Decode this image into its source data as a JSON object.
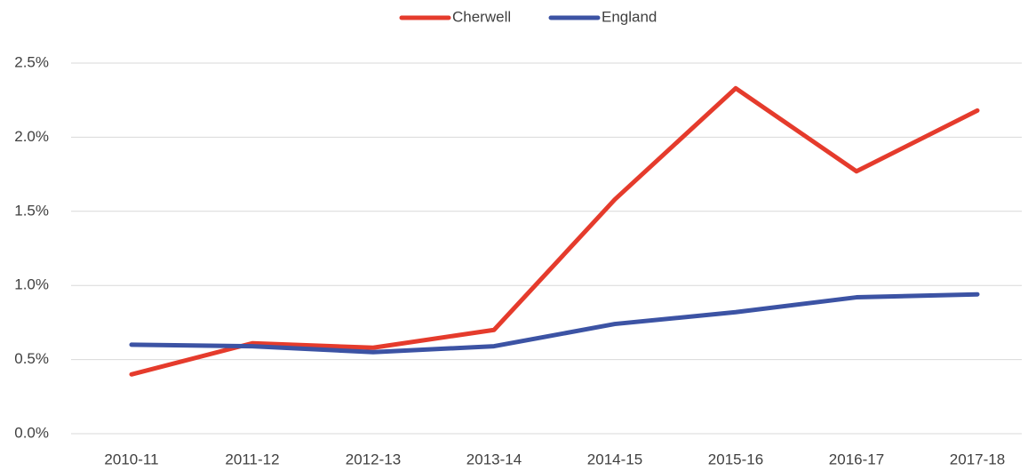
{
  "chart_data": {
    "type": "line",
    "categories": [
      "2010-11",
      "2011-12",
      "2012-13",
      "2013-14",
      "2014-15",
      "2015-16",
      "2016-17",
      "2017-18"
    ],
    "series": [
      {
        "name": "Cherwell",
        "color": "#e53b2c",
        "values": [
          0.4,
          0.61,
          0.58,
          0.7,
          1.58,
          2.33,
          1.77,
          2.18
        ]
      },
      {
        "name": "England",
        "color": "#3c53a4",
        "values": [
          0.6,
          0.59,
          0.55,
          0.59,
          0.74,
          0.82,
          0.92,
          0.94
        ]
      }
    ],
    "ylim": [
      0,
      2.5
    ],
    "yticks": [
      {
        "value": 0,
        "label": "0.0%"
      },
      {
        "value": 0.5,
        "label": "0.5%"
      },
      {
        "value": 1,
        "label": "1.0%"
      },
      {
        "value": 1.5,
        "label": "1.5%"
      },
      {
        "value": 2,
        "label": "2.0%"
      },
      {
        "value": 2.5,
        "label": "2.5%"
      }
    ],
    "grid": true,
    "legend": "top"
  }
}
